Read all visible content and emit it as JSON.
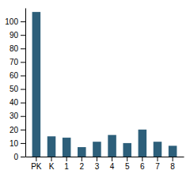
{
  "chart_data": {
    "type": "bar",
    "categories": [
      "PK",
      "K",
      "1",
      "2",
      "3",
      "4",
      "5",
      "6",
      "7",
      "8"
    ],
    "values": [
      107,
      15,
      14,
      7,
      11,
      16,
      10,
      20,
      11,
      8
    ],
    "color": "#2d5f7a",
    "ylim": [
      0,
      110
    ],
    "yticks": [
      0,
      10,
      20,
      30,
      40,
      50,
      60,
      70,
      80,
      90,
      100
    ],
    "grid": false
  }
}
